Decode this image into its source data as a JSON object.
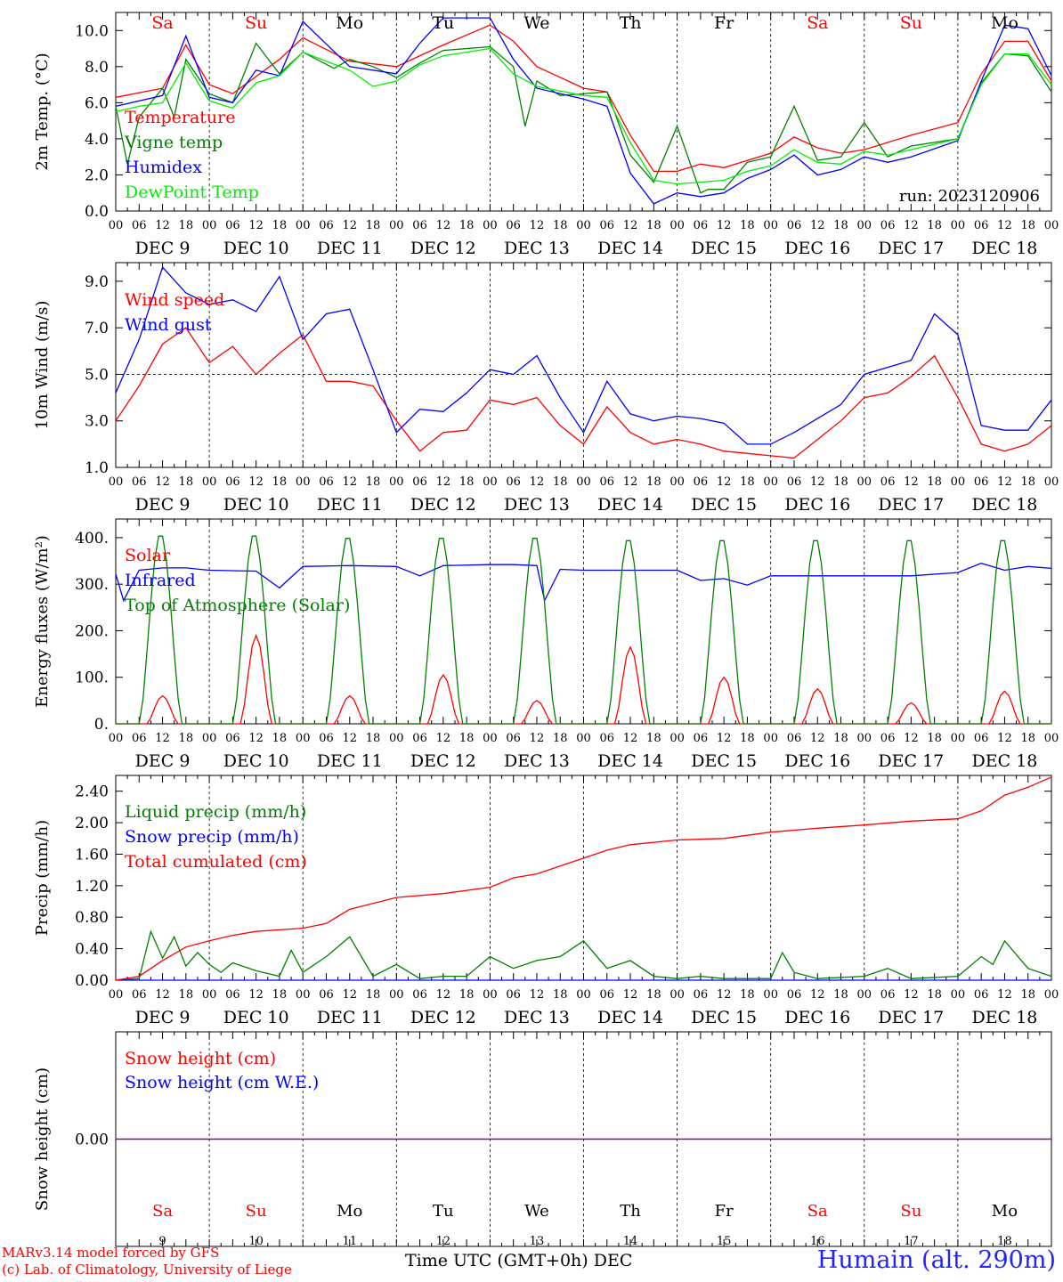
{
  "footer": {
    "model_line": "MARv3.14 model forced by GFS",
    "credit_line": "(c) Lab. of Climatology, University of Liege",
    "xaxis_title": "Time UTC (GMT+0h) DEC",
    "station": "Humain (alt. 290m)"
  },
  "days_of_week": [
    "Sa",
    "Su",
    "Mo",
    "Tu",
    "We",
    "Th",
    "Fr",
    "Sa",
    "Su",
    "Mo"
  ],
  "date_labels": [
    "DEC  9",
    "DEC 10",
    "DEC 11",
    "DEC 12",
    "DEC 13",
    "DEC 14",
    "DEC 15",
    "DEC 16",
    "DEC 17",
    "DEC 18"
  ],
  "day_numbers": [
    "9",
    "10",
    "11",
    "12",
    "13",
    "14",
    "15",
    "16",
    "17",
    "18"
  ],
  "hour_ticks": [
    "00",
    "06",
    "12",
    "18"
  ],
  "colors": {
    "weekend": "#ff0000",
    "weekday": "#000000",
    "red": "#ff0000",
    "green": "#008000",
    "blue": "#0000ff",
    "light_green": "#00ee00",
    "purple": "#800080"
  },
  "chart_data": [
    {
      "type": "line",
      "ylabel": "2m Temp. (°C)",
      "ylim": [
        0,
        11
      ],
      "yticks": [
        "0.0",
        "2.0",
        "4.0",
        "6.0",
        "8.0",
        "10.0"
      ],
      "run_label": "run: 2023120906",
      "x_unit": "hours since Dec 9 00 UTC",
      "series": [
        {
          "name": "Temperature",
          "color": "red",
          "x": [
            0,
            12,
            18,
            24,
            30,
            42,
            48,
            60,
            72,
            84,
            96,
            102,
            108,
            120,
            126,
            132,
            138,
            144,
            150,
            156,
            162,
            168,
            174,
            180,
            186,
            192,
            198,
            204,
            216,
            222,
            228,
            234,
            240
          ],
          "y": [
            6.3,
            6.8,
            9.2,
            7.0,
            6.5,
            8.4,
            9.6,
            8.3,
            8.0,
            9.2,
            10.3,
            9.4,
            8.0,
            6.8,
            6.6,
            4.2,
            2.2,
            2.2,
            2.6,
            2.4,
            2.8,
            3.2,
            4.1,
            3.5,
            3.2,
            3.4,
            3.8,
            4.2,
            4.9,
            7.6,
            9.4,
            9.4,
            7.2
          ]
        },
        {
          "name": "Vigne temp",
          "color": "green",
          "x": [
            0,
            3,
            6,
            12,
            15,
            18,
            24,
            30,
            36,
            42,
            48,
            56,
            60,
            66,
            72,
            78,
            84,
            96,
            102,
            105,
            108,
            114,
            126,
            132,
            138,
            144,
            150,
            152,
            156,
            162,
            168,
            174,
            180,
            186,
            192,
            198,
            204,
            216,
            222,
            228,
            234,
            240
          ],
          "y": [
            5.8,
            2.6,
            5.2,
            6.8,
            5.2,
            8.4,
            6.5,
            6.0,
            9.3,
            7.6,
            8.8,
            7.9,
            8.4,
            8.0,
            7.4,
            8.2,
            8.9,
            9.1,
            8.0,
            4.7,
            7.2,
            6.4,
            6.6,
            3.1,
            1.6,
            4.7,
            1.0,
            1.2,
            1.2,
            2.7,
            3.0,
            5.8,
            2.8,
            3.0,
            4.9,
            3.0,
            3.6,
            4.0,
            7.1,
            8.7,
            8.6,
            6.6
          ]
        },
        {
          "name": "Humidex",
          "color": "blue",
          "x": [
            0,
            12,
            18,
            24,
            30,
            36,
            42,
            48,
            60,
            72,
            78,
            84,
            96,
            102,
            108,
            120,
            126,
            132,
            138,
            144,
            150,
            156,
            162,
            168,
            174,
            180,
            186,
            192,
            198,
            204,
            216,
            222,
            228,
            234,
            240
          ],
          "y": [
            5.8,
            6.4,
            9.7,
            6.3,
            6.0,
            7.8,
            7.5,
            10.5,
            8.0,
            7.6,
            9.3,
            10.7,
            10.7,
            8.4,
            6.8,
            6.2,
            5.8,
            2.1,
            0.4,
            1.0,
            0.8,
            1.0,
            1.8,
            2.3,
            3.1,
            2.0,
            2.3,
            3.0,
            2.7,
            3.0,
            3.9,
            7.2,
            10.3,
            10.1,
            7.5
          ]
        },
        {
          "name": "DewPoint Temp",
          "color": "light_green",
          "x": [
            0,
            6,
            12,
            18,
            24,
            30,
            36,
            42,
            48,
            60,
            66,
            72,
            78,
            84,
            96,
            102,
            108,
            120,
            126,
            132,
            138,
            144,
            150,
            156,
            162,
            168,
            174,
            180,
            186,
            192,
            198,
            204,
            216,
            222,
            228,
            234,
            240
          ],
          "y": [
            5.5,
            5.8,
            6.0,
            8.2,
            6.1,
            5.7,
            7.1,
            7.5,
            8.8,
            7.8,
            6.9,
            7.2,
            8.1,
            8.6,
            9.0,
            7.6,
            6.9,
            6.4,
            6.3,
            3.8,
            1.7,
            1.5,
            1.6,
            1.7,
            2.2,
            2.5,
            3.4,
            2.7,
            2.6,
            3.3,
            3.1,
            3.4,
            4.0,
            7.0,
            8.7,
            8.7,
            7.0
          ]
        }
      ]
    },
    {
      "type": "line",
      "ylabel": "10m Wind (m/s)",
      "ylim": [
        1.0,
        9.8
      ],
      "yticks": [
        "1.0",
        "3.0",
        "5.0",
        "7.0",
        "9.0"
      ],
      "reference_line": 5.0,
      "x_unit": "hours since Dec 9 00 UTC",
      "series": [
        {
          "name": "Wind speed",
          "color": "red",
          "x": [
            0,
            6,
            12,
            18,
            24,
            30,
            36,
            42,
            48,
            54,
            60,
            66,
            72,
            78,
            84,
            90,
            96,
            102,
            108,
            114,
            120,
            126,
            132,
            138,
            144,
            150,
            156,
            162,
            168,
            174,
            180,
            186,
            192,
            198,
            204,
            210,
            216,
            222,
            228,
            234,
            240
          ],
          "y": [
            3.0,
            4.5,
            6.3,
            7.0,
            5.5,
            6.2,
            5.0,
            5.9,
            6.7,
            4.7,
            4.7,
            4.5,
            3.0,
            1.7,
            2.5,
            2.6,
            3.9,
            3.7,
            4.0,
            2.8,
            2.0,
            3.6,
            2.5,
            2.0,
            2.2,
            2.0,
            1.7,
            1.6,
            1.5,
            1.4,
            2.2,
            3.0,
            4.0,
            4.2,
            4.9,
            5.8,
            4.0,
            2.0,
            1.7,
            2.0,
            2.8
          ]
        },
        {
          "name": "Wind gust",
          "color": "blue",
          "x": [
            0,
            6,
            12,
            18,
            24,
            30,
            36,
            42,
            48,
            54,
            60,
            66,
            72,
            78,
            84,
            90,
            96,
            102,
            108,
            114,
            120,
            126,
            132,
            138,
            144,
            150,
            156,
            162,
            168,
            174,
            180,
            186,
            192,
            198,
            204,
            210,
            216,
            222,
            228,
            234,
            240
          ],
          "y": [
            4.2,
            6.5,
            9.6,
            8.5,
            8.0,
            8.2,
            7.7,
            9.2,
            6.5,
            7.6,
            7.8,
            5.2,
            2.5,
            3.5,
            3.4,
            4.2,
            5.2,
            5.0,
            5.8,
            4.0,
            2.5,
            4.7,
            3.3,
            3.0,
            3.2,
            3.1,
            2.9,
            2.0,
            2.0,
            2.5,
            3.1,
            3.7,
            5.0,
            5.3,
            5.6,
            7.6,
            6.7,
            2.8,
            2.6,
            2.6,
            3.9
          ]
        }
      ]
    },
    {
      "type": "line",
      "ylabel": "Energy fluxes (W/m²)",
      "ylim": [
        0,
        440
      ],
      "yticks": [
        "0.",
        "100.",
        "200.",
        "300.",
        "400."
      ],
      "x_unit": "hours since Dec 9 00 UTC",
      "series": [
        {
          "name": "Solar",
          "color": "red",
          "peaks": [
            60,
            190,
            60,
            105,
            50,
            165,
            100,
            75,
            45,
            70
          ]
        },
        {
          "name": "Infrared",
          "color": "blue",
          "x": [
            0,
            2,
            6,
            12,
            18,
            24,
            36,
            42,
            48,
            60,
            72,
            78,
            84,
            96,
            102,
            108,
            110,
            114,
            120,
            132,
            144,
            150,
            156,
            162,
            168,
            180,
            192,
            204,
            216,
            222,
            228,
            234,
            240
          ],
          "y": [
            322,
            265,
            330,
            335,
            335,
            330,
            328,
            292,
            338,
            340,
            338,
            318,
            340,
            342,
            342,
            340,
            265,
            332,
            330,
            330,
            330,
            308,
            312,
            298,
            318,
            318,
            318,
            318,
            325,
            345,
            330,
            338,
            334
          ]
        },
        {
          "name": "Top of Atmosphere (Solar)",
          "color": "green",
          "peaks": [
            410,
            410,
            405,
            405,
            405,
            400,
            400,
            400,
            400,
            400
          ]
        }
      ]
    },
    {
      "type": "line",
      "ylabel": "Precip (mm/h)",
      "ylim": [
        0,
        2.6
      ],
      "yticks": [
        "0.00",
        "0.40",
        "0.80",
        "1.20",
        "1.60",
        "2.00",
        "2.40"
      ],
      "x_unit": "hours since Dec 9 00 UTC",
      "series": [
        {
          "name": "Liquid precip (mm/h)",
          "color": "green",
          "x": [
            0,
            6,
            9,
            12,
            15,
            18,
            21,
            24,
            27,
            30,
            36,
            42,
            45,
            48,
            54,
            60,
            66,
            72,
            78,
            84,
            90,
            96,
            102,
            108,
            114,
            120,
            126,
            132,
            138,
            144,
            150,
            156,
            168,
            171,
            174,
            180,
            192,
            198,
            204,
            216,
            222,
            225,
            228,
            234,
            240
          ],
          "y": [
            0,
            0.02,
            0.62,
            0.28,
            0.55,
            0.18,
            0.35,
            0.2,
            0.1,
            0.22,
            0.12,
            0.05,
            0.38,
            0.1,
            0.3,
            0.55,
            0.05,
            0.2,
            0.02,
            0.05,
            0.05,
            0.3,
            0.15,
            0.25,
            0.3,
            0.5,
            0.15,
            0.25,
            0.05,
            0.02,
            0.05,
            0.02,
            0.02,
            0.35,
            0.1,
            0.02,
            0.05,
            0.15,
            0.02,
            0.05,
            0.3,
            0.2,
            0.5,
            0.15,
            0.05
          ]
        },
        {
          "name": "Snow precip (mm/h)",
          "color": "blue",
          "x": [
            0,
            240
          ],
          "y": [
            0,
            0
          ]
        },
        {
          "name": "Total cumulated (cm)",
          "color": "red",
          "x": [
            0,
            6,
            12,
            18,
            24,
            30,
            36,
            48,
            54,
            60,
            72,
            84,
            96,
            102,
            108,
            114,
            120,
            126,
            132,
            144,
            156,
            168,
            180,
            192,
            204,
            216,
            222,
            228,
            234,
            240
          ],
          "y": [
            0,
            0.05,
            0.25,
            0.42,
            0.5,
            0.57,
            0.62,
            0.66,
            0.72,
            0.9,
            1.05,
            1.1,
            1.18,
            1.3,
            1.35,
            1.45,
            1.55,
            1.65,
            1.72,
            1.78,
            1.8,
            1.88,
            1.93,
            1.97,
            2.02,
            2.05,
            2.15,
            2.35,
            2.45,
            2.58
          ]
        }
      ]
    },
    {
      "type": "line",
      "ylabel": "Snow height (cm)",
      "yticks": [
        "0.00"
      ],
      "x_unit": "hours since Dec 9 00 UTC",
      "series": [
        {
          "name": "Snow height (cm)",
          "color": "red",
          "x": [
            0,
            240
          ],
          "y": [
            0,
            0
          ]
        },
        {
          "name": "Snow height (cm W.E.)",
          "color": "blue",
          "x": [
            0,
            240
          ],
          "y": [
            0,
            0
          ]
        }
      ]
    }
  ]
}
